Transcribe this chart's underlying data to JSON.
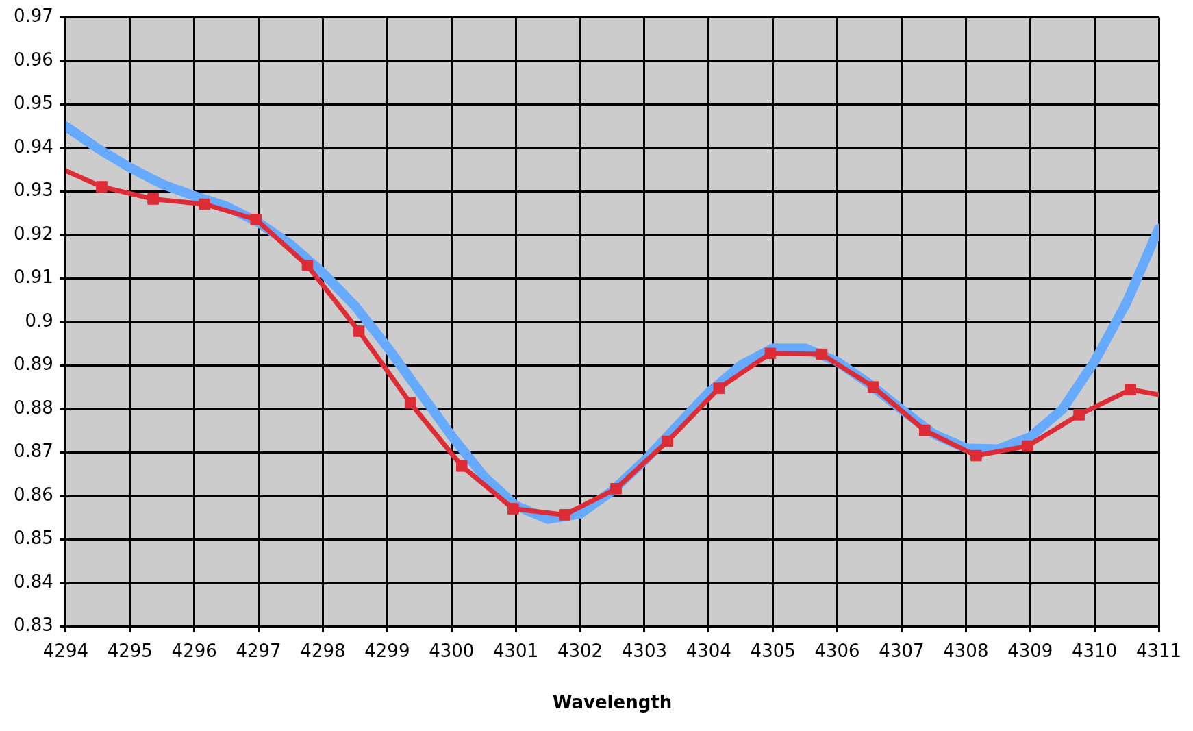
{
  "chart_data": {
    "type": "line",
    "xlabel": "Wavelength",
    "xlim": [
      4294,
      4311
    ],
    "xticks": [
      4294,
      4295,
      4296,
      4297,
      4298,
      4299,
      4300,
      4301,
      4302,
      4303,
      4304,
      4305,
      4306,
      4307,
      4308,
      4309,
      4310,
      4311
    ],
    "ylim": [
      0.83,
      0.97
    ],
    "yticks": [
      0.83,
      0.84,
      0.85,
      0.86,
      0.87,
      0.88,
      0.89,
      0.9,
      0.91,
      0.92,
      0.93,
      0.94,
      0.95,
      0.96,
      0.97
    ],
    "grid": true,
    "legend": false,
    "series": [
      {
        "color": "#66aaff",
        "marker": "none",
        "x": [
          4294,
          4294.5,
          4295,
          4295.5,
          4296,
          4296.5,
          4297,
          4297.5,
          4298,
          4298.5,
          4299,
          4299.5,
          4300,
          4300.5,
          4301,
          4301.5,
          4302,
          4302.5,
          4303,
          4303.5,
          4304,
          4304.5,
          4305,
          4305.5,
          4306,
          4306.5,
          4307,
          4307.5,
          4308,
          4308.5,
          4309,
          4309.5,
          4310,
          4310.5,
          4311
        ],
        "values": [
          0.945,
          0.9399,
          0.9355,
          0.9317,
          0.929,
          0.9266,
          0.9229,
          0.9178,
          0.9113,
          0.9037,
          0.8943,
          0.8841,
          0.8739,
          0.8646,
          0.8578,
          0.8547,
          0.8559,
          0.8612,
          0.8681,
          0.876,
          0.8838,
          0.8901,
          0.894,
          0.894,
          0.8909,
          0.8858,
          0.8799,
          0.8743,
          0.871,
          0.8708,
          0.8736,
          0.8799,
          0.8909,
          0.9045,
          0.9215
        ]
      },
      {
        "color": "#dd2c35",
        "marker": "square",
        "x": [
          4294,
          4294.56,
          4295.36,
          4296.16,
          4296.96,
          4297.76,
          4298.56,
          4299.36,
          4300.16,
          4300.96,
          4301.76,
          4302.56,
          4303.36,
          4304.16,
          4304.96,
          4305.76,
          4306.56,
          4307.36,
          4308.16,
          4308.96,
          4309.76,
          4310.56,
          4311
        ],
        "values": [
          0.9348,
          0.9311,
          0.9283,
          0.9271,
          0.9236,
          0.913,
          0.8979,
          0.8814,
          0.8669,
          0.8571,
          0.8557,
          0.8617,
          0.8726,
          0.8848,
          0.8928,
          0.8926,
          0.8851,
          0.8751,
          0.8693,
          0.8715,
          0.8787,
          0.8845,
          0.8833
        ]
      }
    ]
  }
}
